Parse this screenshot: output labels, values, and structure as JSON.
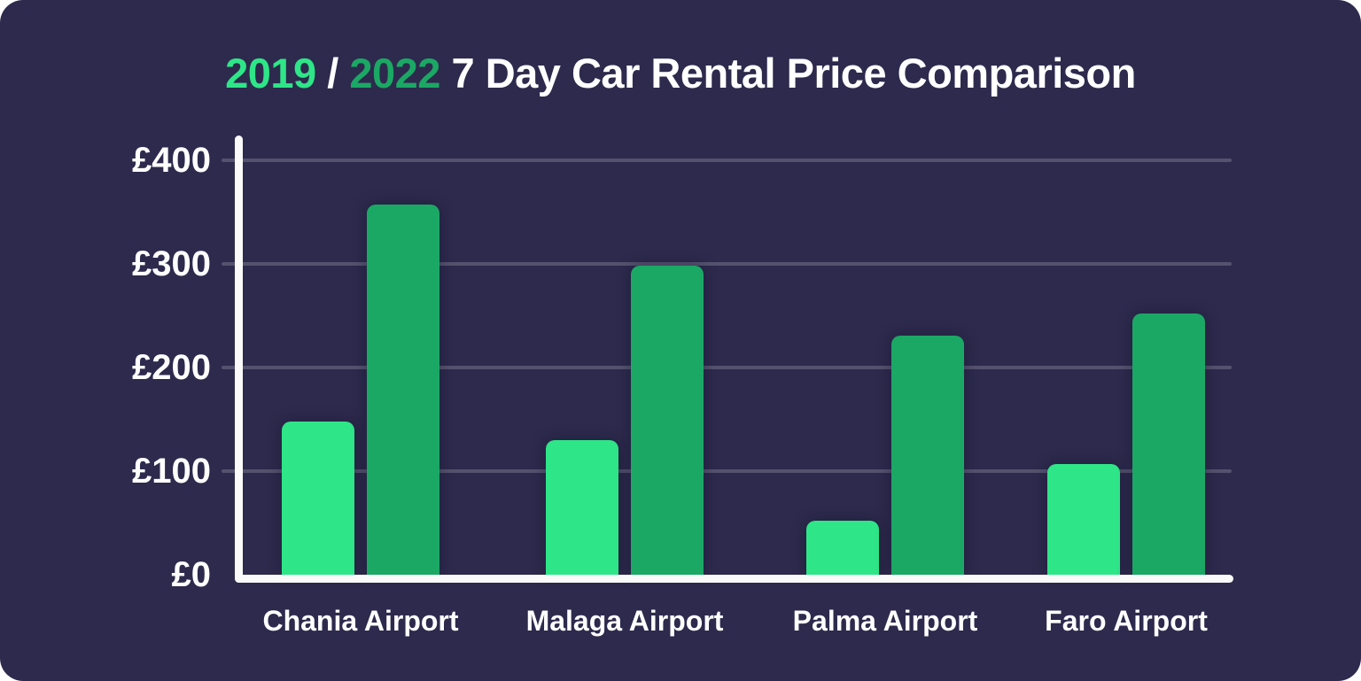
{
  "title": {
    "year_2019": "2019",
    "separator": " / ",
    "year_2022": " 2022",
    "text": " 7 Day Car Rental Price Comparison"
  },
  "colors": {
    "page_bg": "#ffffff",
    "card_bg": "#2d2a4d",
    "axis": "#fafafa",
    "gridline": "#55526f",
    "text": "#ffffff",
    "series_2019": "#2ee687",
    "series_2022": "#1ba864"
  },
  "y_axis": {
    "currency_symbol": "£",
    "tick_labels": [
      "£400",
      "£300",
      "£200",
      "£100",
      "£0"
    ]
  },
  "chart_data": {
    "type": "bar",
    "title": "2019 / 2022 7 Day Car Rental Price Comparison",
    "categories": [
      "Chania Airport",
      "Malaga Airport",
      "Palma Airport",
      "Faro Airport"
    ],
    "series": [
      {
        "name": "2019",
        "color": "#2ee687",
        "values": [
          148,
          130,
          52,
          107
        ]
      },
      {
        "name": "2022",
        "color": "#1ba864",
        "values": [
          357,
          298,
          231,
          252
        ]
      }
    ],
    "xlabel": "",
    "ylabel": "",
    "ylim": [
      0,
      400
    ],
    "yticks": [
      0,
      100,
      200,
      300,
      400
    ],
    "grid": true,
    "legend_position": "title-colors"
  }
}
